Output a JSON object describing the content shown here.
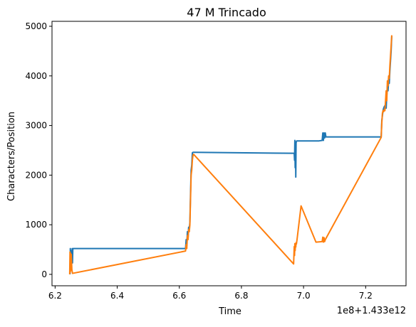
{
  "chart_data": {
    "type": "line",
    "title": "47 M Trincado",
    "xlabel": "Time",
    "ylabel": "Characters/Position",
    "x_offset_label": "1e8+1.433e12",
    "xlim": [
      6.19,
      7.33
    ],
    "ylim": [
      -230,
      5100
    ],
    "xticks": [
      {
        "value": 6.2,
        "label": "6.2"
      },
      {
        "value": 6.4,
        "label": "6.4"
      },
      {
        "value": 6.6,
        "label": "6.6"
      },
      {
        "value": 6.8,
        "label": "6.8"
      },
      {
        "value": 7.0,
        "label": "7.0"
      },
      {
        "value": 7.2,
        "label": "7.2"
      }
    ],
    "yticks": [
      {
        "value": 0,
        "label": "0"
      },
      {
        "value": 1000,
        "label": "1000"
      },
      {
        "value": 2000,
        "label": "2000"
      },
      {
        "value": 3000,
        "label": "3000"
      },
      {
        "value": 4000,
        "label": "4000"
      },
      {
        "value": 5000,
        "label": "5000"
      }
    ],
    "grid": false,
    "legend": "none",
    "series": [
      {
        "color": "#1f77b4",
        "x": [
          6.248,
          6.249,
          6.25,
          6.251,
          6.252,
          6.253,
          6.254,
          6.255,
          6.256,
          6.257,
          6.258,
          6.62,
          6.622,
          6.624,
          6.626,
          6.628,
          6.63,
          6.632,
          6.634,
          6.636,
          6.638,
          6.64,
          6.642,
          6.644,
          6.646,
          6.97,
          6.971,
          6.972,
          6.973,
          6.974,
          6.975,
          6.976,
          6.977,
          6.978,
          7.05,
          7.06,
          7.062,
          7.064,
          7.066,
          7.068,
          7.07,
          7.072,
          7.075,
          7.25,
          7.252,
          7.254,
          7.256,
          7.258,
          7.26,
          7.262,
          7.266,
          7.268,
          7.27,
          7.272,
          7.274,
          7.276,
          7.278,
          7.28,
          7.282,
          7.284
        ],
        "values": [
          0,
          520,
          230,
          480,
          100,
          460,
          300,
          520,
          230,
          500,
          520,
          520,
          700,
          580,
          860,
          720,
          950,
          900,
          1050,
          1600,
          2100,
          2200,
          2450,
          2460,
          2460,
          2440,
          2300,
          2700,
          2150,
          2600,
          1960,
          2650,
          2680,
          2690,
          2690,
          2700,
          2850,
          2700,
          2850,
          2750,
          2850,
          2770,
          2770,
          2770,
          3100,
          3200,
          3300,
          3350,
          3380,
          3400,
          3350,
          3600,
          3800,
          3700,
          3900,
          3850,
          4100,
          4300,
          4500,
          4800
        ]
      },
      {
        "color": "#ff7f0e",
        "x": [
          6.247,
          6.248,
          6.249,
          6.25,
          6.251,
          6.252,
          6.254,
          6.256,
          6.62,
          6.622,
          6.624,
          6.626,
          6.628,
          6.63,
          6.632,
          6.634,
          6.636,
          6.638,
          6.64,
          6.642,
          6.644,
          6.646,
          6.968,
          6.97,
          6.971,
          6.972,
          6.973,
          6.974,
          6.975,
          6.976,
          6.977,
          6.979,
          6.992,
          7.04,
          7.06,
          7.062,
          7.064,
          7.066,
          7.068,
          7.07,
          7.25,
          7.252,
          7.254,
          7.256,
          7.258,
          7.26,
          7.262,
          7.266,
          7.268,
          7.27,
          7.272,
          7.274,
          7.276,
          7.278,
          7.28,
          7.282,
          7.284
        ],
        "values": [
          0,
          450,
          50,
          420,
          80,
          400,
          100,
          20,
          470,
          600,
          520,
          780,
          700,
          900,
          860,
          1000,
          1500,
          2000,
          2100,
          2300,
          2400,
          2420,
          210,
          560,
          380,
          620,
          480,
          600,
          550,
          640,
          610,
          700,
          1380,
          650,
          660,
          750,
          650,
          740,
          660,
          700,
          2760,
          3050,
          3250,
          3300,
          3280,
          3320,
          3300,
          3700,
          3500,
          3900,
          3800,
          4000,
          3950,
          4200,
          4400,
          4600,
          4820
        ]
      }
    ]
  }
}
